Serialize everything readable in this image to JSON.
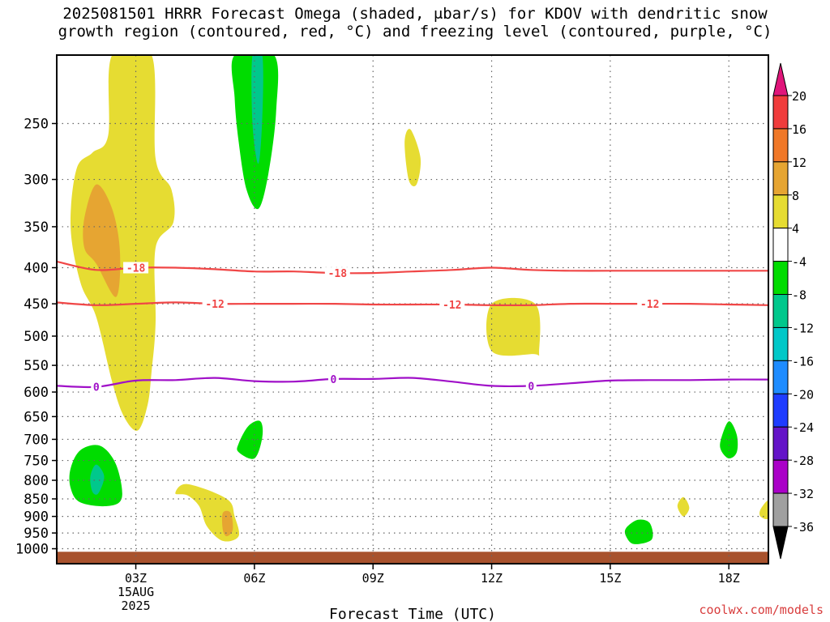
{
  "title_line1": "2025081501 HRRR Forecast Omega (shaded, μbar/s) for KDOV with dendritic snow",
  "title_line2": "growth region (contoured, red, °C) and freezing level (contoured, purple, °C)",
  "credit": "coolwx.com/models",
  "chart_data": {
    "type": "time-height contour",
    "title": "2025081501 HRRR Forecast Omega (shaded, μbar/s) for KDOV with dendritic snow growth region (contoured, red, °C) and freezing level (contoured, purple, °C)",
    "xlabel": "Forecast Time (UTC)",
    "ylabel": "",
    "x_range_hours": [
      1,
      19
    ],
    "x_ticks": [
      {
        "hour": 3,
        "label": "03Z",
        "sublabel": [
          "15AUG",
          "2025"
        ]
      },
      {
        "hour": 6,
        "label": "06Z"
      },
      {
        "hour": 9,
        "label": "09Z"
      },
      {
        "hour": 12,
        "label": "12Z"
      },
      {
        "hour": 15,
        "label": "15Z"
      },
      {
        "hour": 18,
        "label": "18Z"
      }
    ],
    "y_axis": "pressure (mb), log scale, inverted",
    "y_range": [
      1050,
      200
    ],
    "y_ticks": [
      250,
      300,
      350,
      400,
      450,
      500,
      550,
      600,
      650,
      700,
      750,
      800,
      850,
      900,
      950,
      1000
    ],
    "grid": "dotted",
    "colorbar": {
      "levels": [
        "20",
        "16",
        "12",
        "8",
        "4",
        "-4",
        "-8",
        "-12",
        "-16",
        "-20",
        "-24",
        "-28",
        "-32",
        "-36"
      ],
      "bins": [
        {
          "range": ">20",
          "color": "#e0157a"
        },
        {
          "range": "16 to 20",
          "color": "#f03c3c"
        },
        {
          "range": "12 to 16",
          "color": "#f07828"
        },
        {
          "range": "8 to 12",
          "color": "#e6a532"
        },
        {
          "range": "4 to 8",
          "color": "#e6dc32"
        },
        {
          "range": "-4 to 4",
          "color": "#ffffff"
        },
        {
          "range": "-8 to -4",
          "color": "#00dc00"
        },
        {
          "range": "-12 to -8",
          "color": "#00c88c"
        },
        {
          "range": "-16 to -12",
          "color": "#00c8c8"
        },
        {
          "range": "-20 to -16",
          "color": "#1e8cff"
        },
        {
          "range": "-24 to -20",
          "color": "#1e3cff"
        },
        {
          "range": "-28 to -24",
          "color": "#6414c8"
        },
        {
          "range": "-32 to -28",
          "color": "#aa00c8"
        },
        {
          "range": "-36 to -32",
          "color": "#a0a0a0"
        },
        {
          "range": "<-36",
          "color": "#000000"
        }
      ]
    },
    "shaded_regions": [
      {
        "bin": "4 to 8",
        "points": [
          [
            2.4,
            200
          ],
          [
            3.4,
            200
          ],
          [
            3.5,
            280
          ],
          [
            3.9,
            310
          ],
          [
            3.95,
            345
          ],
          [
            3.5,
            375
          ],
          [
            3.5,
            480
          ],
          [
            3.4,
            560
          ],
          [
            3.3,
            625
          ],
          [
            3.05,
            680
          ],
          [
            2.7,
            650
          ],
          [
            2.4,
            580
          ],
          [
            2.0,
            470
          ],
          [
            1.6,
            420
          ],
          [
            1.35,
            350
          ],
          [
            1.5,
            290
          ],
          [
            1.9,
            275
          ],
          [
            2.3,
            260
          ]
        ]
      },
      {
        "bin": "8 to 12",
        "points": [
          [
            1.7,
            340
          ],
          [
            2.0,
            305
          ],
          [
            2.4,
            330
          ],
          [
            2.6,
            380
          ],
          [
            2.5,
            440
          ],
          [
            2.0,
            395
          ],
          [
            1.7,
            375
          ]
        ]
      },
      {
        "bin": "4 to 8",
        "points": [
          [
            9.8,
            265
          ],
          [
            9.95,
            255
          ],
          [
            10.2,
            280
          ],
          [
            10.1,
            305
          ],
          [
            9.9,
            300
          ]
        ]
      },
      {
        "bin": "4 to 8",
        "points": [
          [
            12.0,
            450
          ],
          [
            13.1,
            450
          ],
          [
            13.2,
            525
          ],
          [
            13.05,
            530
          ],
          [
            12.0,
            525
          ]
        ]
      },
      {
        "bin": "4 to 8",
        "points": [
          [
            4.0,
            835
          ],
          [
            4.3,
            810
          ],
          [
            5.3,
            850
          ],
          [
            5.5,
            900
          ],
          [
            5.6,
            960
          ],
          [
            5.2,
            975
          ],
          [
            4.8,
            930
          ],
          [
            4.6,
            870
          ],
          [
            4.3,
            840
          ]
        ]
      },
      {
        "bin": "8 to 12",
        "points": [
          [
            5.2,
            890
          ],
          [
            5.4,
            890
          ],
          [
            5.45,
            940
          ],
          [
            5.3,
            960
          ],
          [
            5.2,
            940
          ]
        ]
      },
      {
        "bin": "4 to 8",
        "points": [
          [
            16.7,
            870
          ],
          [
            16.85,
            845
          ],
          [
            17.0,
            875
          ],
          [
            16.85,
            900
          ]
        ]
      },
      {
        "bin": "4 to 8",
        "points": [
          [
            18.8,
            880
          ],
          [
            19.0,
            855
          ],
          [
            19.0,
            905
          ],
          [
            18.8,
            900
          ]
        ]
      },
      {
        "bin": "-8 to -4",
        "points": [
          [
            5.5,
            200
          ],
          [
            6.5,
            200
          ],
          [
            6.55,
            240
          ],
          [
            6.35,
            295
          ],
          [
            6.1,
            330
          ],
          [
            5.8,
            310
          ],
          [
            5.6,
            265
          ],
          [
            5.5,
            230
          ]
        ]
      },
      {
        "bin": "-12 to -8",
        "points": [
          [
            5.95,
            200
          ],
          [
            6.2,
            200
          ],
          [
            6.2,
            245
          ],
          [
            6.1,
            285
          ],
          [
            5.95,
            250
          ]
        ]
      },
      {
        "bin": "-8 to -4",
        "points": [
          [
            5.6,
            710
          ],
          [
            5.85,
            670
          ],
          [
            6.15,
            660
          ],
          [
            6.2,
            695
          ],
          [
            6.0,
            745
          ],
          [
            5.6,
            730
          ]
        ]
      },
      {
        "bin": "-8 to -4",
        "points": [
          [
            1.35,
            770
          ],
          [
            1.6,
            725
          ],
          [
            2.1,
            715
          ],
          [
            2.5,
            760
          ],
          [
            2.65,
            845
          ],
          [
            2.3,
            870
          ],
          [
            1.6,
            860
          ],
          [
            1.35,
            820
          ]
        ]
      },
      {
        "bin": "-12 to -8",
        "points": [
          [
            1.85,
            790
          ],
          [
            2.0,
            760
          ],
          [
            2.2,
            790
          ],
          [
            2.05,
            835
          ],
          [
            1.9,
            830
          ]
        ]
      },
      {
        "bin": "-8 to -4",
        "points": [
          [
            15.4,
            935
          ],
          [
            15.7,
            910
          ],
          [
            16.0,
            920
          ],
          [
            16.05,
            970
          ],
          [
            15.6,
            985
          ],
          [
            15.4,
            960
          ]
        ]
      },
      {
        "bin": "-8 to -4",
        "points": [
          [
            17.8,
            700
          ],
          [
            18.0,
            660
          ],
          [
            18.2,
            690
          ],
          [
            18.2,
            730
          ],
          [
            18.0,
            745
          ],
          [
            17.8,
            725
          ]
        ]
      }
    ],
    "contours": [
      {
        "name": "dendritic snow growth region",
        "value": -18,
        "color": "#f04646",
        "labels": [
          {
            "text": "-18",
            "x": 3.0
          },
          {
            "text": "-18",
            "x": 8.1
          }
        ],
        "points": [
          [
            1,
            392
          ],
          [
            2,
            403
          ],
          [
            3,
            400
          ],
          [
            4,
            400
          ],
          [
            5,
            402
          ],
          [
            6,
            405
          ],
          [
            7,
            405
          ],
          [
            8,
            407
          ],
          [
            9,
            407
          ],
          [
            10,
            405
          ],
          [
            11,
            403
          ],
          [
            12,
            400
          ],
          [
            13,
            403
          ],
          [
            14,
            404
          ],
          [
            15,
            404
          ],
          [
            16,
            404
          ],
          [
            17,
            404
          ],
          [
            18,
            404
          ],
          [
            19,
            404
          ]
        ]
      },
      {
        "name": "dendritic snow growth region",
        "value": -12,
        "color": "#f04646",
        "labels": [
          {
            "text": "-12",
            "x": 5.0
          },
          {
            "text": "-12",
            "x": 11.0
          },
          {
            "text": "-12",
            "x": 16.0
          }
        ],
        "points": [
          [
            1,
            448
          ],
          [
            2,
            452
          ],
          [
            3,
            450
          ],
          [
            4,
            448
          ],
          [
            5,
            450
          ],
          [
            6,
            450
          ],
          [
            7,
            450
          ],
          [
            8,
            450
          ],
          [
            9,
            451
          ],
          [
            10,
            451
          ],
          [
            11,
            451
          ],
          [
            12,
            452
          ],
          [
            13,
            452
          ],
          [
            14,
            450
          ],
          [
            15,
            450
          ],
          [
            16,
            450
          ],
          [
            17,
            450
          ],
          [
            18,
            451
          ],
          [
            19,
            452
          ]
        ]
      },
      {
        "name": "freezing level",
        "value": 0,
        "color": "#a010c8",
        "labels": [
          {
            "text": "0",
            "x": 2.0
          },
          {
            "text": "0",
            "x": 8.0
          },
          {
            "text": "0",
            "x": 13.0
          }
        ],
        "points": [
          [
            1,
            588
          ],
          [
            2,
            590
          ],
          [
            3,
            578
          ],
          [
            4,
            577
          ],
          [
            5,
            573
          ],
          [
            6,
            579
          ],
          [
            7,
            580
          ],
          [
            8,
            575
          ],
          [
            9,
            575
          ],
          [
            10,
            573
          ],
          [
            11,
            580
          ],
          [
            12,
            588
          ],
          [
            13,
            588
          ],
          [
            14,
            583
          ],
          [
            15,
            578
          ],
          [
            16,
            577
          ],
          [
            17,
            577
          ],
          [
            18,
            576
          ],
          [
            19,
            576
          ]
        ]
      }
    ],
    "ground": {
      "color": "#a8522d",
      "top_pressure": 1010
    }
  }
}
